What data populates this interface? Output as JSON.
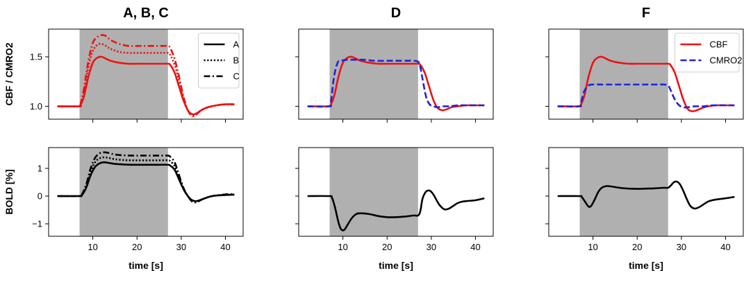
{
  "colors": {
    "cbf": "#ee1111",
    "cmro2": "#1f22dd",
    "bold": "#000000",
    "stim": "#b0b0b0"
  },
  "chart_data": [
    {
      "id": "top-abc",
      "type": "line",
      "title": "A, B, C",
      "ylabel": "CBF / CMRO2",
      "xlabel": "",
      "xlim": [
        0,
        44
      ],
      "ylim": [
        0.87,
        1.78
      ],
      "xticks": [
        10,
        20,
        30,
        40
      ],
      "xtick_labels": [
        "",
        "",
        "",
        ""
      ],
      "yticks": [
        1.0,
        1.5
      ],
      "ytick_labels": [
        "1.0",
        "1.5"
      ],
      "stimulus": [
        7,
        27
      ],
      "legend": {
        "position": "top-right",
        "entries": [
          {
            "label": "A",
            "style": "solid",
            "color": "#000000"
          },
          {
            "label": "B",
            "style": "dotted",
            "color": "#000000"
          },
          {
            "label": "C",
            "style": "dashdot",
            "color": "#000000"
          }
        ]
      },
      "series": [
        {
          "name": "A",
          "color": "#ee1111",
          "style": "solid",
          "x": [
            2,
            6.9,
            7.2,
            8,
            9,
            10,
            11,
            12,
            13,
            14,
            16,
            18,
            20,
            22,
            24,
            26,
            27,
            27.5,
            28.5,
            29.5,
            30.5,
            31.5,
            32.5,
            33.5,
            34.5,
            36,
            38,
            40,
            42
          ],
          "y": [
            1.0,
            1.0,
            1.01,
            1.1,
            1.3,
            1.44,
            1.49,
            1.5,
            1.48,
            1.46,
            1.44,
            1.43,
            1.43,
            1.43,
            1.43,
            1.43,
            1.43,
            1.42,
            1.34,
            1.2,
            1.06,
            0.96,
            0.92,
            0.93,
            0.96,
            0.99,
            1.01,
            1.02,
            1.02
          ]
        },
        {
          "name": "B",
          "color": "#ee1111",
          "style": "dotted",
          "x": [
            2,
            6.9,
            7.2,
            8,
            9,
            10,
            11,
            12,
            13,
            14,
            16,
            18,
            20,
            22,
            24,
            26,
            27,
            27.5,
            28.5,
            29.5,
            30.5,
            31.5,
            32.5,
            33.5,
            34.5,
            36,
            38,
            40,
            42
          ],
          "y": [
            1.0,
            1.0,
            1.02,
            1.15,
            1.4,
            1.56,
            1.62,
            1.63,
            1.61,
            1.58,
            1.55,
            1.54,
            1.54,
            1.54,
            1.54,
            1.54,
            1.54,
            1.52,
            1.42,
            1.26,
            1.08,
            0.96,
            0.91,
            0.93,
            0.96,
            0.99,
            1.01,
            1.02,
            1.02
          ]
        },
        {
          "name": "C",
          "color": "#ee1111",
          "style": "dashdot",
          "x": [
            2,
            6.9,
            7.2,
            8,
            9,
            10,
            11,
            12,
            13,
            14,
            16,
            18,
            20,
            22,
            24,
            26,
            27,
            27.5,
            28.5,
            29.5,
            30.5,
            31.5,
            32.5,
            33.5,
            34.5,
            36,
            38,
            40,
            42
          ],
          "y": [
            1.0,
            1.0,
            1.02,
            1.18,
            1.46,
            1.64,
            1.7,
            1.72,
            1.71,
            1.67,
            1.63,
            1.61,
            1.61,
            1.61,
            1.61,
            1.61,
            1.61,
            1.59,
            1.48,
            1.3,
            1.1,
            0.96,
            0.9,
            0.92,
            0.96,
            0.99,
            1.01,
            1.02,
            1.02
          ]
        }
      ]
    },
    {
      "id": "top-d",
      "type": "line",
      "title": "D",
      "ylabel": "",
      "xlabel": "",
      "xlim": [
        0,
        44
      ],
      "ylim": [
        0.87,
        1.78
      ],
      "xticks": [
        10,
        20,
        30,
        40
      ],
      "xtick_labels": [
        "",
        "",
        "",
        ""
      ],
      "yticks": [
        1.0,
        1.5
      ],
      "ytick_labels": [
        "",
        ""
      ],
      "stimulus": [
        7,
        27
      ],
      "series": [
        {
          "name": "CBF",
          "color": "#ee1111",
          "style": "solid",
          "x": [
            2,
            6.9,
            7.2,
            8,
            9,
            10,
            11,
            12,
            13,
            14,
            16,
            18,
            20,
            22,
            24,
            26,
            27,
            27.5,
            28.5,
            29.5,
            30.5,
            31.5,
            32.5,
            33.5,
            34.5,
            36,
            38,
            40,
            42
          ],
          "y": [
            1.0,
            1.0,
            1.01,
            1.1,
            1.3,
            1.44,
            1.49,
            1.5,
            1.48,
            1.46,
            1.44,
            1.43,
            1.43,
            1.43,
            1.43,
            1.43,
            1.43,
            1.42,
            1.34,
            1.2,
            1.06,
            0.98,
            0.96,
            0.97,
            0.99,
            1.0,
            1.01,
            1.01,
            1.01
          ]
        },
        {
          "name": "CMRO2",
          "color": "#1f22dd",
          "style": "dashed",
          "x": [
            2,
            6.8,
            7.3,
            8,
            8.8,
            9.5,
            11,
            13,
            15,
            17,
            20,
            23,
            26,
            27,
            27.4,
            28,
            28.8,
            29.6,
            30.5,
            31.5,
            32.5,
            34,
            36,
            38,
            40,
            42
          ],
          "y": [
            1.0,
            1.0,
            1.05,
            1.3,
            1.44,
            1.46,
            1.47,
            1.47,
            1.47,
            1.46,
            1.46,
            1.46,
            1.46,
            1.45,
            1.42,
            1.28,
            1.1,
            1.02,
            1.0,
            0.99,
            1.0,
            1.0,
            1.01,
            1.01,
            1.01,
            1.01
          ]
        }
      ]
    },
    {
      "id": "top-f",
      "type": "line",
      "title": "F",
      "ylabel": "",
      "xlabel": "",
      "xlim": [
        0,
        44
      ],
      "ylim": [
        0.87,
        1.78
      ],
      "xticks": [
        10,
        20,
        30,
        40
      ],
      "xtick_labels": [
        "",
        "",
        "",
        ""
      ],
      "yticks": [
        1.0,
        1.5
      ],
      "ytick_labels": [
        "",
        ""
      ],
      "stimulus": [
        7,
        27
      ],
      "legend": {
        "position": "top-right",
        "entries": [
          {
            "label": "CBF",
            "style": "solid",
            "color": "#ee1111"
          },
          {
            "label": "CMRO2",
            "style": "dashed",
            "color": "#1f22dd"
          }
        ]
      },
      "series": [
        {
          "name": "CBF",
          "color": "#ee1111",
          "style": "solid",
          "x": [
            2,
            6.9,
            7.2,
            8,
            9,
            10,
            11,
            12,
            13,
            14,
            16,
            18,
            20,
            22,
            24,
            26,
            27,
            27.5,
            28.5,
            29.5,
            30.5,
            31.5,
            32.5,
            33.5,
            34.5,
            36,
            38,
            40,
            42
          ],
          "y": [
            1.0,
            1.0,
            1.01,
            1.1,
            1.3,
            1.44,
            1.49,
            1.5,
            1.48,
            1.46,
            1.44,
            1.43,
            1.43,
            1.43,
            1.43,
            1.43,
            1.43,
            1.42,
            1.34,
            1.2,
            1.06,
            0.97,
            0.95,
            0.96,
            0.98,
            1.0,
            1.01,
            1.01,
            1.01
          ]
        },
        {
          "name": "CMRO2",
          "color": "#1f22dd",
          "style": "dashed",
          "x": [
            2,
            6.8,
            7.3,
            8,
            9,
            10,
            12,
            14,
            16,
            18,
            20,
            22,
            24,
            26,
            27,
            27.5,
            28.5,
            29.5,
            30.5,
            31.5,
            33,
            35,
            37,
            40,
            42
          ],
          "y": [
            1.0,
            1.0,
            1.04,
            1.15,
            1.21,
            1.22,
            1.22,
            1.22,
            1.22,
            1.22,
            1.22,
            1.22,
            1.22,
            1.22,
            1.21,
            1.17,
            1.07,
            1.01,
            0.99,
            0.99,
            1.0,
            1.0,
            1.01,
            1.01,
            1.01
          ]
        }
      ]
    },
    {
      "id": "bottom-abc",
      "type": "line",
      "title": "",
      "ylabel": "BOLD [%]",
      "xlabel": "time [s]",
      "xlim": [
        0,
        44
      ],
      "ylim": [
        -1.45,
        1.75
      ],
      "xticks": [
        10,
        20,
        30,
        40
      ],
      "xtick_labels": [
        "10",
        "20",
        "30",
        "40"
      ],
      "yticks": [
        -1,
        0,
        1
      ],
      "ytick_labels": [
        "−1",
        "0",
        "1"
      ],
      "stimulus": [
        7,
        27
      ],
      "series": [
        {
          "name": "A",
          "color": "#000000",
          "style": "solid",
          "x": [
            2,
            6.9,
            7.5,
            8.5,
            9.5,
            10.5,
            11.5,
            12.5,
            13.5,
            15,
            17,
            19,
            21,
            23,
            25,
            27,
            27.5,
            28.5,
            29.5,
            30.5,
            31.5,
            32.5,
            33.5,
            35,
            37,
            40,
            42
          ],
          "y": [
            0.0,
            0.0,
            0.03,
            0.3,
            0.75,
            1.05,
            1.18,
            1.22,
            1.2,
            1.16,
            1.14,
            1.13,
            1.13,
            1.13,
            1.13,
            1.13,
            1.1,
            0.95,
            0.6,
            0.25,
            0.0,
            -0.15,
            -0.18,
            -0.1,
            0.0,
            0.04,
            0.05
          ]
        },
        {
          "name": "B",
          "color": "#000000",
          "style": "dotted",
          "x": [
            2,
            6.9,
            7.5,
            8.5,
            9.5,
            10.5,
            11.5,
            12.5,
            13.5,
            15,
            17,
            19,
            21,
            23,
            25,
            27,
            27.5,
            28.5,
            29.5,
            30.5,
            31.5,
            32.5,
            33.5,
            35,
            37,
            40,
            42
          ],
          "y": [
            0.0,
            0.0,
            0.04,
            0.36,
            0.88,
            1.22,
            1.36,
            1.4,
            1.38,
            1.33,
            1.3,
            1.29,
            1.29,
            1.29,
            1.29,
            1.29,
            1.26,
            1.08,
            0.68,
            0.28,
            0.0,
            -0.18,
            -0.2,
            -0.1,
            0.0,
            0.05,
            0.06
          ]
        },
        {
          "name": "C",
          "color": "#000000",
          "style": "dashdot",
          "x": [
            2,
            6.9,
            7.5,
            8.5,
            9.5,
            10.5,
            11.5,
            12.5,
            13.5,
            15,
            17,
            19,
            21,
            23,
            25,
            27,
            27.5,
            28.5,
            29.5,
            30.5,
            31.5,
            32.5,
            33.5,
            35,
            37,
            40,
            42
          ],
          "y": [
            0.0,
            0.0,
            0.05,
            0.42,
            1.0,
            1.38,
            1.54,
            1.58,
            1.56,
            1.5,
            1.47,
            1.46,
            1.46,
            1.46,
            1.46,
            1.46,
            1.42,
            1.22,
            0.76,
            0.3,
            0.0,
            -0.2,
            -0.22,
            -0.1,
            0.0,
            0.06,
            0.07
          ]
        }
      ]
    },
    {
      "id": "bottom-d",
      "type": "line",
      "title": "",
      "ylabel": "",
      "xlabel": "time [s]",
      "xlim": [
        0,
        44
      ],
      "ylim": [
        -1.45,
        1.75
      ],
      "xticks": [
        10,
        20,
        30,
        40
      ],
      "xtick_labels": [
        "10",
        "20",
        "30",
        "40"
      ],
      "yticks": [
        -1,
        0,
        1
      ],
      "ytick_labels": [
        "",
        "",
        ""
      ],
      "stimulus": [
        7,
        27
      ],
      "series": [
        {
          "name": "BOLD",
          "color": "#000000",
          "style": "solid",
          "x": [
            2,
            6.9,
            7.5,
            8.2,
            9,
            9.6,
            10.3,
            11,
            12,
            13,
            14,
            16,
            18,
            20,
            22,
            24,
            26,
            27,
            27.5,
            28,
            28.6,
            29.2,
            29.8,
            30.5,
            31.3,
            32,
            33,
            34,
            35,
            36,
            37,
            38,
            40,
            42
          ],
          "y": [
            0.0,
            0.0,
            -0.05,
            -0.4,
            -0.95,
            -1.2,
            -1.22,
            -1.05,
            -0.8,
            -0.65,
            -0.62,
            -0.65,
            -0.72,
            -0.76,
            -0.76,
            -0.74,
            -0.7,
            -0.7,
            -0.55,
            -0.1,
            0.12,
            0.2,
            0.18,
            0.05,
            -0.18,
            -0.35,
            -0.48,
            -0.45,
            -0.35,
            -0.25,
            -0.2,
            -0.18,
            -0.15,
            -0.08
          ]
        }
      ]
    },
    {
      "id": "bottom-f",
      "type": "line",
      "title": "",
      "ylabel": "",
      "xlabel": "time [s]",
      "xlim": [
        0,
        44
      ],
      "ylim": [
        -1.45,
        1.75
      ],
      "xticks": [
        10,
        20,
        30,
        40
      ],
      "xtick_labels": [
        "10",
        "20",
        "30",
        "40"
      ],
      "yticks": [
        -1,
        0,
        1
      ],
      "ytick_labels": [
        "",
        "",
        ""
      ],
      "stimulus": [
        7,
        27
      ],
      "series": [
        {
          "name": "BOLD",
          "color": "#000000",
          "style": "solid",
          "x": [
            2,
            6.9,
            7.4,
            8.2,
            9,
            9.6,
            10.4,
            11.2,
            12,
            13,
            14,
            16,
            18,
            20,
            22,
            24,
            26,
            27,
            27.6,
            28.3,
            29,
            29.7,
            30.4,
            31.2,
            32,
            33,
            34,
            35,
            36,
            37,
            38,
            40,
            42
          ],
          "y": [
            0.0,
            0.0,
            -0.02,
            -0.2,
            -0.38,
            -0.35,
            -0.12,
            0.15,
            0.3,
            0.36,
            0.35,
            0.3,
            0.27,
            0.26,
            0.27,
            0.28,
            0.3,
            0.3,
            0.38,
            0.5,
            0.52,
            0.42,
            0.2,
            -0.1,
            -0.35,
            -0.45,
            -0.4,
            -0.3,
            -0.2,
            -0.15,
            -0.12,
            -0.08,
            -0.03
          ]
        }
      ]
    }
  ]
}
